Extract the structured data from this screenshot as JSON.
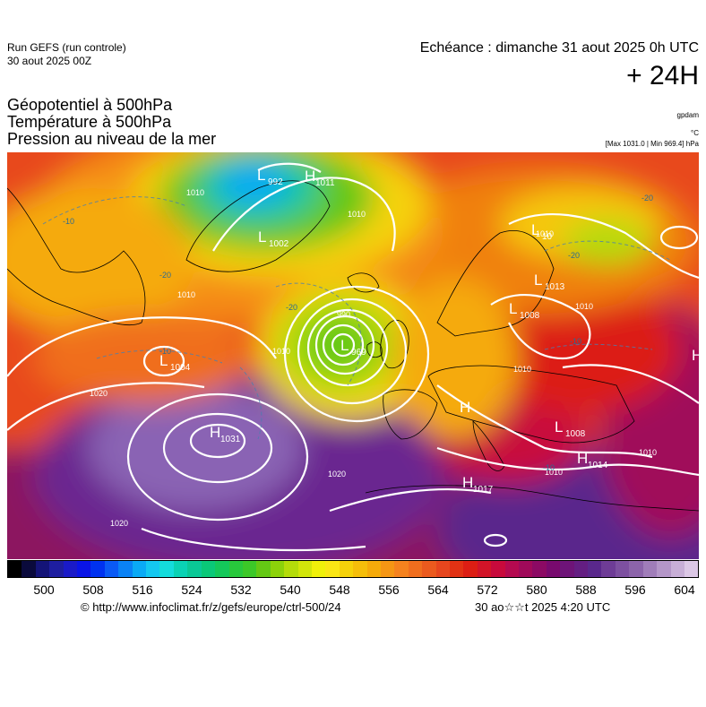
{
  "header": {
    "run_title": "Run GEFS (run controle)",
    "run_date": "30 aout 2025 00Z",
    "echeance": "Echéance : dimanche 31 aout 2025 0h UTC",
    "lead_time": "+ 24H",
    "params": [
      "Géopotentiel à 500hPa",
      "Température à 500hPa",
      "Pression au niveau de la mer"
    ],
    "unit_geopot": "gpdam",
    "unit_temp": "°C",
    "max_min": "[Max 1031.0 | Min 969.4] hPa"
  },
  "map": {
    "pressure_centers": [
      {
        "type": "L",
        "value": "992"
      },
      {
        "type": "H",
        "value": "1011"
      },
      {
        "type": "L",
        "value": "1002"
      },
      {
        "type": "L",
        "value": "969"
      },
      {
        "type": "L",
        "value": "1004"
      },
      {
        "type": "H",
        "value": "1031"
      },
      {
        "type": "L",
        "value": "1008"
      },
      {
        "type": "L",
        "value": "1013"
      },
      {
        "type": "L",
        "value": "1008"
      },
      {
        "type": "H",
        "value": "1014"
      },
      {
        "type": "H",
        "value": "1017"
      },
      {
        "type": "H",
        "value": ""
      },
      {
        "type": "H",
        "value": ""
      },
      {
        "type": "L",
        "value": "10"
      }
    ],
    "isobar_labels": [
      "1010",
      "1020",
      "1020",
      "1020",
      "1010",
      "1010",
      "1010",
      "1010",
      "990",
      "1010",
      "1010",
      "1010",
      "1010"
    ],
    "temperature_labels": [
      "-20",
      "-20",
      "-20",
      "-20",
      "-10",
      "-10",
      "-10",
      "-10"
    ]
  },
  "colorbar": {
    "ticks": [
      "500",
      "508",
      "516",
      "524",
      "532",
      "540",
      "548",
      "556",
      "564",
      "572",
      "580",
      "588",
      "596",
      "604"
    ],
    "colors": [
      "#000000",
      "#0a0a3c",
      "#141478",
      "#1e1ea0",
      "#1a1ac8",
      "#0a14e6",
      "#0032f0",
      "#0a5af5",
      "#0a82f5",
      "#0aaaf5",
      "#14c8f0",
      "#14dcdc",
      "#0ad2b4",
      "#0ac896",
      "#0ac878",
      "#14c85a",
      "#28c83c",
      "#3cc828",
      "#64c814",
      "#8cd20a",
      "#b4dc0a",
      "#d2e60a",
      "#f0f00a",
      "#fae614",
      "#f5d20a",
      "#f5be0a",
      "#f5aa0a",
      "#f59614",
      "#f5821e",
      "#f06e1e",
      "#eb5a1e",
      "#e6461e",
      "#e13214",
      "#dc1e14",
      "#d21428",
      "#c80a3c",
      "#b40a50",
      "#a00a5a",
      "#8c0a64",
      "#780a6e",
      "#6e1478",
      "#641e82",
      "#5a288c",
      "#6e3c96",
      "#7d50a0",
      "#8c64aa",
      "#a07db9",
      "#b496c8",
      "#c8afd7",
      "#dcc8e6"
    ]
  },
  "footer": {
    "copyright": "© http://www.infoclimat.fr/z/gefs/europe/ctrl-500/24",
    "generated": "30 ao☆☆t 2025  4:20 UTC"
  }
}
